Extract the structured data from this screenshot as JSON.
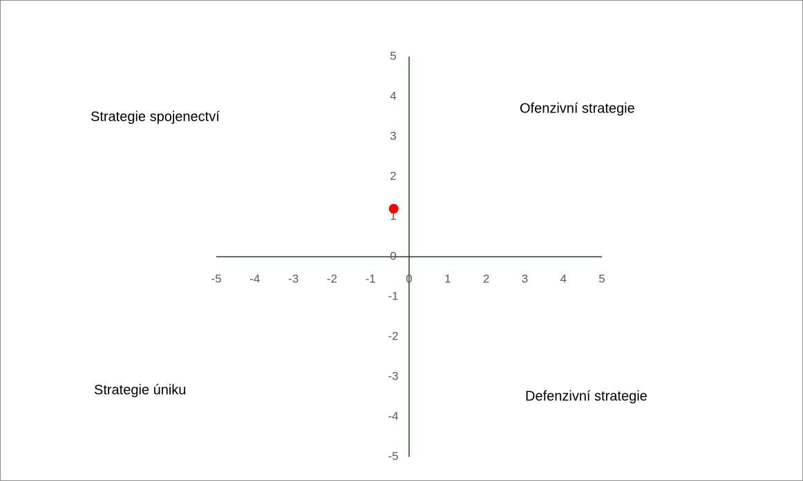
{
  "chart_data": {
    "type": "scatter",
    "annotations": [
      "Strategie spojenectví",
      "Ofenzivní strategie",
      "Strategie úniku",
      "Defenzivní strategie"
    ],
    "series": [
      {
        "color": "#ff0000",
        "x": [
          -0.4
        ],
        "values": [
          1.2
        ]
      }
    ],
    "xlim": [
      -5,
      5
    ],
    "ylim": [
      -5,
      5
    ],
    "xticks": [
      -5,
      -4,
      -3,
      -2,
      -1,
      0,
      1,
      2,
      3,
      4,
      5
    ],
    "yticks": [
      -5,
      -4,
      -3,
      -2,
      -1,
      0,
      1,
      2,
      3,
      4,
      5
    ]
  }
}
